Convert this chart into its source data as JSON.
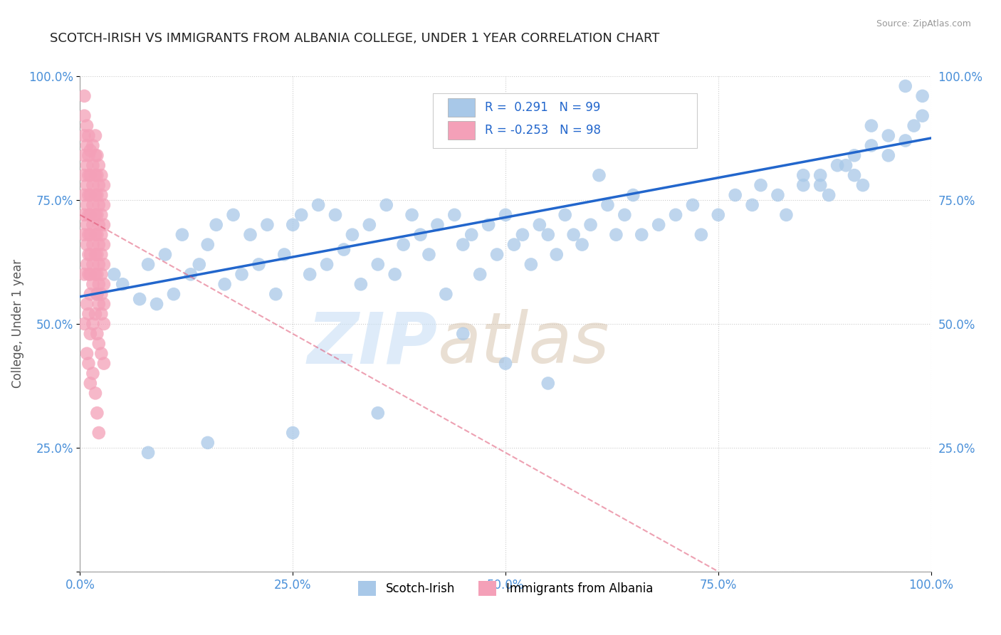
{
  "title": "SCOTCH-IRISH VS IMMIGRANTS FROM ALBANIA COLLEGE, UNDER 1 YEAR CORRELATION CHART",
  "source_text": "Source: ZipAtlas.com",
  "ylabel": "College, Under 1 year",
  "x_tick_labels": [
    "0.0%",
    "25.0%",
    "50.0%",
    "75.0%",
    "100.0%"
  ],
  "y_tick_labels": [
    "",
    "25.0%",
    "50.0%",
    "75.0%",
    "100.0%"
  ],
  "x_ticks": [
    0,
    0.25,
    0.5,
    0.75,
    1.0
  ],
  "y_ticks": [
    0,
    0.25,
    0.5,
    0.75,
    1.0
  ],
  "xlim": [
    0,
    1.0
  ],
  "ylim": [
    0,
    1.0
  ],
  "blue_R": 0.291,
  "blue_N": 99,
  "pink_R": -0.253,
  "pink_N": 98,
  "blue_color": "#a8c8e8",
  "pink_color": "#f4a0b8",
  "blue_line_color": "#2266cc",
  "pink_line_color": "#dd4466",
  "legend_label_blue": "Scotch-Irish",
  "legend_label_pink": "Immigrants from Albania",
  "watermark_zip": "ZIP",
  "watermark_atlas": "atlas",
  "blue_line_x0": 0.0,
  "blue_line_y0": 0.555,
  "blue_line_x1": 1.0,
  "blue_line_y1": 0.875,
  "pink_line_x0": 0.0,
  "pink_line_y0": 0.72,
  "pink_line_x1": 0.75,
  "pink_line_y1": 0.0,
  "blue_scatter_x": [
    0.02,
    0.04,
    0.05,
    0.07,
    0.08,
    0.09,
    0.1,
    0.11,
    0.12,
    0.13,
    0.14,
    0.15,
    0.16,
    0.17,
    0.18,
    0.19,
    0.2,
    0.21,
    0.22,
    0.23,
    0.24,
    0.25,
    0.26,
    0.27,
    0.28,
    0.29,
    0.3,
    0.31,
    0.32,
    0.33,
    0.34,
    0.35,
    0.36,
    0.37,
    0.38,
    0.39,
    0.4,
    0.41,
    0.42,
    0.43,
    0.44,
    0.45,
    0.46,
    0.47,
    0.48,
    0.49,
    0.5,
    0.51,
    0.52,
    0.53,
    0.54,
    0.55,
    0.56,
    0.57,
    0.58,
    0.59,
    0.6,
    0.61,
    0.62,
    0.63,
    0.64,
    0.65,
    0.66,
    0.68,
    0.7,
    0.72,
    0.73,
    0.75,
    0.77,
    0.79,
    0.8,
    0.82,
    0.83,
    0.85,
    0.87,
    0.88,
    0.9,
    0.91,
    0.92,
    0.93,
    0.95,
    0.97,
    0.98,
    0.99,
    0.99,
    0.97,
    0.95,
    0.93,
    0.91,
    0.89,
    0.87,
    0.85,
    0.5,
    0.45,
    0.55,
    0.35,
    0.25,
    0.15,
    0.08
  ],
  "blue_scatter_y": [
    0.56,
    0.6,
    0.58,
    0.55,
    0.62,
    0.54,
    0.64,
    0.56,
    0.68,
    0.6,
    0.62,
    0.66,
    0.7,
    0.58,
    0.72,
    0.6,
    0.68,
    0.62,
    0.7,
    0.56,
    0.64,
    0.7,
    0.72,
    0.6,
    0.74,
    0.62,
    0.72,
    0.65,
    0.68,
    0.58,
    0.7,
    0.62,
    0.74,
    0.6,
    0.66,
    0.72,
    0.68,
    0.64,
    0.7,
    0.56,
    0.72,
    0.66,
    0.68,
    0.6,
    0.7,
    0.64,
    0.72,
    0.66,
    0.68,
    0.62,
    0.7,
    0.68,
    0.64,
    0.72,
    0.68,
    0.66,
    0.7,
    0.8,
    0.74,
    0.68,
    0.72,
    0.76,
    0.68,
    0.7,
    0.72,
    0.74,
    0.68,
    0.72,
    0.76,
    0.74,
    0.78,
    0.76,
    0.72,
    0.8,
    0.78,
    0.76,
    0.82,
    0.8,
    0.78,
    0.86,
    0.84,
    0.87,
    0.9,
    0.96,
    0.92,
    0.98,
    0.88,
    0.9,
    0.84,
    0.82,
    0.8,
    0.78,
    0.42,
    0.48,
    0.38,
    0.32,
    0.28,
    0.26,
    0.24
  ],
  "pink_scatter_x": [
    0.005,
    0.008,
    0.01,
    0.012,
    0.015,
    0.018,
    0.02,
    0.022,
    0.025,
    0.028,
    0.005,
    0.008,
    0.01,
    0.012,
    0.015,
    0.018,
    0.02,
    0.022,
    0.025,
    0.028,
    0.005,
    0.008,
    0.01,
    0.012,
    0.015,
    0.018,
    0.02,
    0.022,
    0.025,
    0.028,
    0.005,
    0.008,
    0.01,
    0.012,
    0.015,
    0.018,
    0.02,
    0.022,
    0.025,
    0.028,
    0.005,
    0.008,
    0.01,
    0.012,
    0.015,
    0.018,
    0.02,
    0.022,
    0.025,
    0.028,
    0.005,
    0.008,
    0.01,
    0.012,
    0.015,
    0.018,
    0.02,
    0.022,
    0.025,
    0.028,
    0.005,
    0.008,
    0.01,
    0.012,
    0.015,
    0.018,
    0.02,
    0.022,
    0.025,
    0.028,
    0.005,
    0.008,
    0.01,
    0.012,
    0.015,
    0.018,
    0.02,
    0.022,
    0.025,
    0.028,
    0.005,
    0.008,
    0.01,
    0.012,
    0.015,
    0.018,
    0.02,
    0.022,
    0.025,
    0.028,
    0.005,
    0.008,
    0.01,
    0.012,
    0.015,
    0.018,
    0.02,
    0.022
  ],
  "pink_scatter_y": [
    0.96,
    0.9,
    0.88,
    0.85,
    0.86,
    0.88,
    0.84,
    0.82,
    0.8,
    0.78,
    0.92,
    0.86,
    0.84,
    0.8,
    0.82,
    0.84,
    0.8,
    0.78,
    0.76,
    0.74,
    0.88,
    0.82,
    0.8,
    0.76,
    0.78,
    0.8,
    0.76,
    0.74,
    0.72,
    0.7,
    0.84,
    0.78,
    0.76,
    0.72,
    0.74,
    0.76,
    0.72,
    0.7,
    0.68,
    0.66,
    0.8,
    0.74,
    0.72,
    0.68,
    0.7,
    0.72,
    0.68,
    0.66,
    0.64,
    0.62,
    0.76,
    0.7,
    0.68,
    0.64,
    0.66,
    0.68,
    0.64,
    0.62,
    0.6,
    0.58,
    0.72,
    0.66,
    0.64,
    0.6,
    0.62,
    0.64,
    0.6,
    0.58,
    0.56,
    0.54,
    0.68,
    0.62,
    0.6,
    0.56,
    0.58,
    0.6,
    0.56,
    0.54,
    0.52,
    0.5,
    0.6,
    0.54,
    0.52,
    0.48,
    0.5,
    0.52,
    0.48,
    0.46,
    0.44,
    0.42,
    0.5,
    0.44,
    0.42,
    0.38,
    0.4,
    0.36,
    0.32,
    0.28
  ]
}
